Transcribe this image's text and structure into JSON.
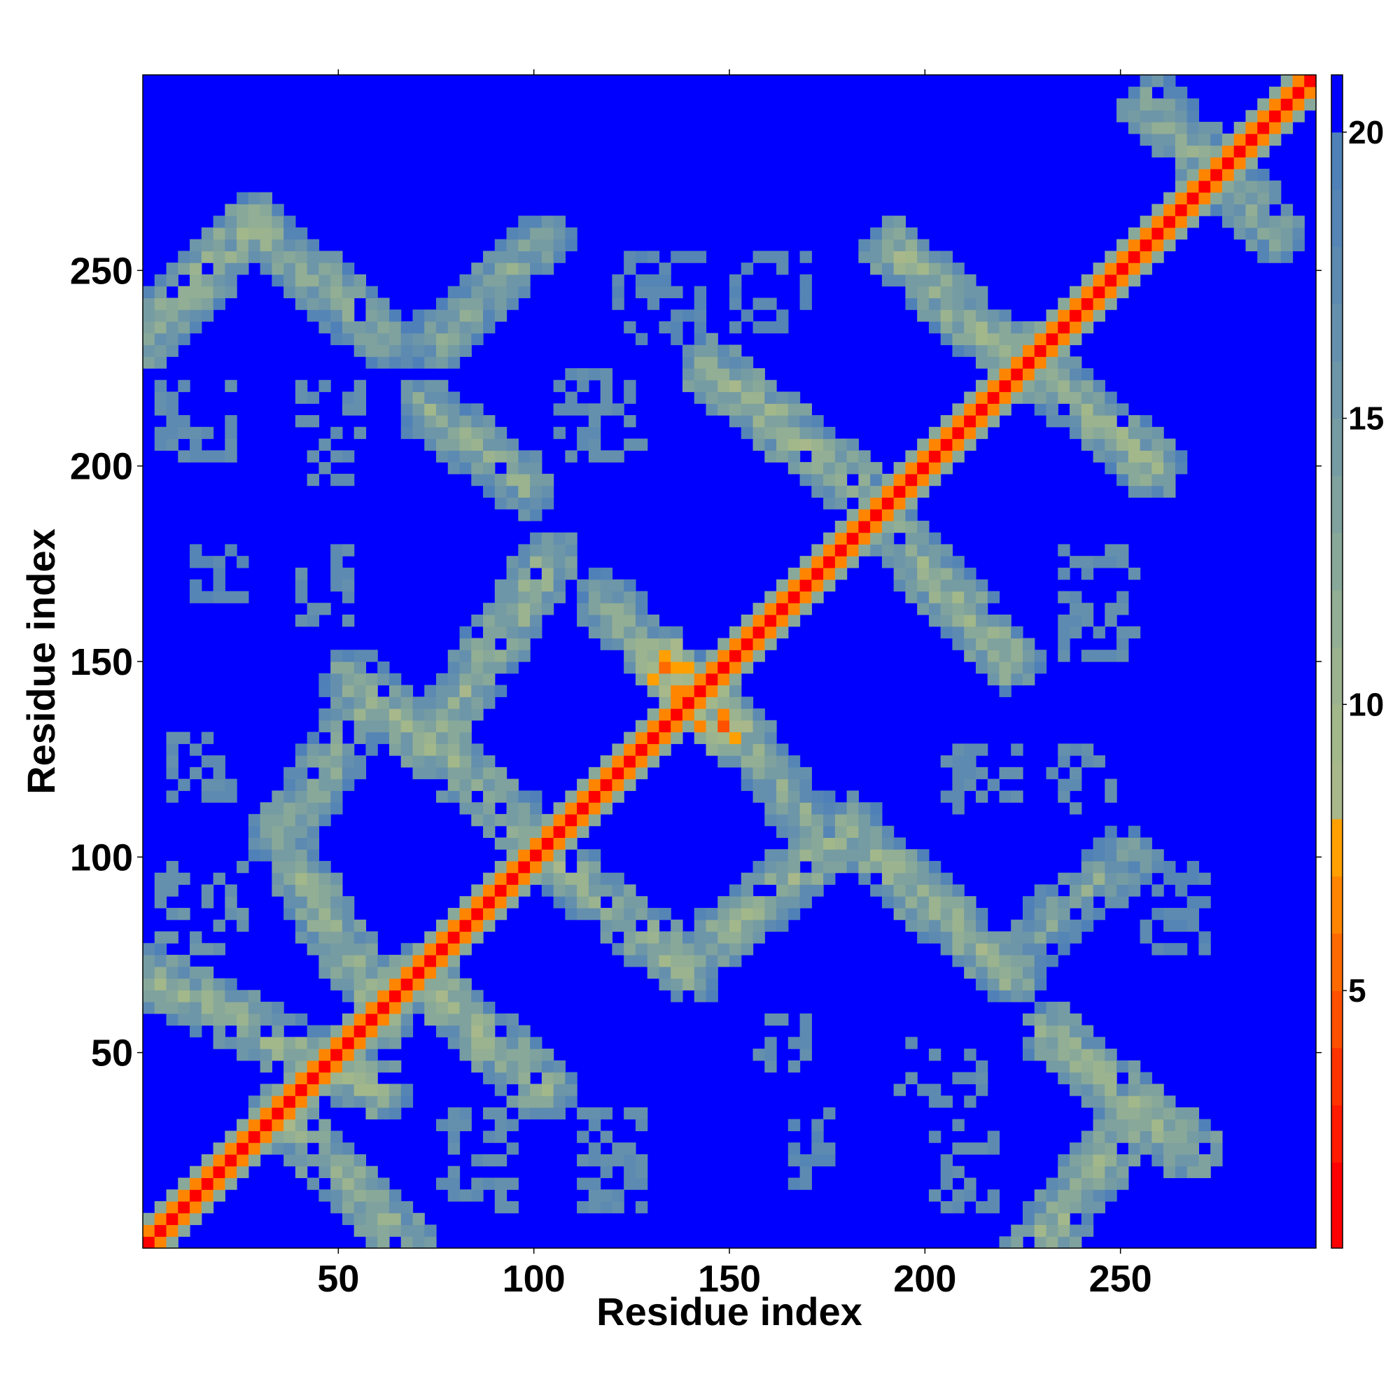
{
  "chart_data": {
    "type": "heatmap",
    "title": "",
    "xlabel": "Residue index",
    "ylabel": "Residue index",
    "n_residues": 300,
    "xlim": [
      0,
      300
    ],
    "ylim": [
      0,
      300
    ],
    "x_ticks": [
      50,
      100,
      150,
      200,
      250
    ],
    "y_ticks": [
      50,
      100,
      150,
      200,
      250
    ],
    "colorbar": {
      "ticks": [
        5,
        10,
        15,
        20
      ],
      "range": [
        0.5,
        21
      ],
      "levels": [
        {
          "from": 0.5,
          "to": 2,
          "color": "#ff0000"
        },
        {
          "from": 2,
          "to": 3,
          "color": "#ff1a00"
        },
        {
          "from": 3,
          "to": 4,
          "color": "#ff3300"
        },
        {
          "from": 4,
          "to": 5,
          "color": "#ff5000"
        },
        {
          "from": 5,
          "to": 6,
          "color": "#ff6a00"
        },
        {
          "from": 6,
          "to": 7,
          "color": "#ff8500"
        },
        {
          "from": 7,
          "to": 8,
          "color": "#ffa000"
        },
        {
          "from": 8,
          "to": 9,
          "color": "#a8b88a"
        },
        {
          "from": 9,
          "to": 10,
          "color": "#a3b88a"
        },
        {
          "from": 10,
          "to": 11,
          "color": "#9bb38f"
        },
        {
          "from": 11,
          "to": 12,
          "color": "#92ae94"
        },
        {
          "from": 12,
          "to": 13,
          "color": "#88a999"
        },
        {
          "from": 13,
          "to": 14,
          "color": "#7fa29e"
        },
        {
          "from": 14,
          "to": 15,
          "color": "#769ca3"
        },
        {
          "from": 15,
          "to": 16,
          "color": "#6d96a8"
        },
        {
          "from": 16,
          "to": 17,
          "color": "#6590ad"
        },
        {
          "from": 17,
          "to": 18,
          "color": "#5d8ab1"
        },
        {
          "from": 18,
          "to": 19,
          "color": "#5585b5"
        },
        {
          "from": 19,
          "to": 20,
          "color": "#4f81b8"
        },
        {
          "from": 20,
          "to": 21,
          "color": "#0000ff"
        }
      ]
    },
    "background_value": 21,
    "diagonal": {
      "core_value": 1,
      "band_width": 9
    },
    "contact_bands": [
      {
        "x": [
          0,
          60
        ],
        "y": [
          70,
          40
        ],
        "orientation": "anti",
        "mean_value": 11
      },
      {
        "x": [
          35,
          68
        ],
        "y": [
          35,
          0
        ],
        "orientation": "anti",
        "mean_value": 11
      },
      {
        "x": [
          0,
          28
        ],
        "y": [
          232,
          262
        ],
        "orientation": "para",
        "mean_value": 11
      },
      {
        "x": [
          28,
          62
        ],
        "y": [
          262,
          232
        ],
        "orientation": "anti",
        "mean_value": 12
      },
      {
        "x": [
          72,
          98
        ],
        "y": [
          215,
          195
        ],
        "orientation": "anti",
        "mean_value": 12
      },
      {
        "x": [
          75,
          102
        ],
        "y": [
          232,
          258
        ],
        "orientation": "para",
        "mean_value": 13
      },
      {
        "x": [
          74,
          104
        ],
        "y": [
          130,
          176
        ],
        "orientation": "para",
        "mean_value": 11
      },
      {
        "x": [
          40,
          62
        ],
        "y": [
          95,
          60
        ],
        "orientation": "anti",
        "mean_value": 11
      },
      {
        "x": [
          54,
          95
        ],
        "y": [
          145,
          110
        ],
        "orientation": "anti",
        "mean_value": 11
      },
      {
        "x": [
          35,
          55
        ],
        "y": [
          105,
          135
        ],
        "orientation": "para",
        "mean_value": 12
      },
      {
        "x": [
          70,
          103
        ],
        "y": [
          70,
          40
        ],
        "orientation": "anti",
        "mean_value": 11
      },
      {
        "x": [
          104,
          140
        ],
        "y": [
          100,
          70
        ],
        "orientation": "anti",
        "mean_value": 11
      },
      {
        "x": [
          148,
          182
        ],
        "y": [
          80,
          108
        ],
        "orientation": "para",
        "mean_value": 11
      },
      {
        "x": [
          118,
          138
        ],
        "y": [
          165,
          145
        ],
        "orientation": "anti",
        "mean_value": 12
      },
      {
        "x": [
          145,
          170
        ],
        "y": [
          140,
          110
        ],
        "orientation": "anti",
        "mean_value": 12
      },
      {
        "x": [
          145,
          182
        ],
        "y": [
          225,
          195
        ],
        "orientation": "anti",
        "mean_value": 11
      },
      {
        "x": [
          190,
          222
        ],
        "y": [
          185,
          150
        ],
        "orientation": "anti",
        "mean_value": 11
      },
      {
        "x": [
          192,
          222
        ],
        "y": [
          255,
          228
        ],
        "orientation": "anti",
        "mean_value": 11
      },
      {
        "x": [
          225,
          258
        ],
        "y": [
          228,
          200
        ],
        "orientation": "anti",
        "mean_value": 11
      },
      {
        "x": [
          188,
          222
        ],
        "y": [
          100,
          70
        ],
        "orientation": "anti",
        "mean_value": 11
      },
      {
        "x": [
          228,
          252
        ],
        "y": [
          80,
          100
        ],
        "orientation": "para",
        "mean_value": 13
      },
      {
        "x": [
          232,
          268
        ],
        "y": [
          55,
          25
        ],
        "orientation": "anti",
        "mean_value": 11
      },
      {
        "x": [
          228,
          255
        ],
        "y": [
          0,
          35
        ],
        "orientation": "para",
        "mean_value": 11
      },
      {
        "x": [
          258,
          290
        ],
        "y": [
          292,
          260
        ],
        "orientation": "anti",
        "mean_value": 12
      },
      {
        "x": [
          134,
          148
        ],
        "y": [
          148,
          134
        ],
        "orientation": "anti",
        "mean_value": 6
      }
    ],
    "scattered_patches": [
      {
        "x": [
          2,
          28
        ],
        "y": [
          200,
          222
        ],
        "mean_value": 17
      },
      {
        "x": [
          38,
          58
        ],
        "y": [
          195,
          222
        ],
        "mean_value": 17
      },
      {
        "x": [
          10,
          28
        ],
        "y": [
          165,
          180
        ],
        "mean_value": 18
      },
      {
        "x": [
          38,
          55
        ],
        "y": [
          160,
          180
        ],
        "mean_value": 17
      },
      {
        "x": [
          5,
          25
        ],
        "y": [
          115,
          132
        ],
        "mean_value": 17
      },
      {
        "x": [
          2,
          28
        ],
        "y": [
          75,
          100
        ],
        "mean_value": 16
      },
      {
        "x": [
          75,
          95
        ],
        "y": [
          10,
          35
        ],
        "mean_value": 17
      },
      {
        "x": [
          110,
          130
        ],
        "y": [
          10,
          35
        ],
        "mean_value": 17
      },
      {
        "x": [
          105,
          130
        ],
        "y": [
          200,
          225
        ],
        "mean_value": 17
      },
      {
        "x": [
          120,
          145
        ],
        "y": [
          230,
          255
        ],
        "mean_value": 18
      },
      {
        "x": [
          150,
          170
        ],
        "y": [
          235,
          255
        ],
        "mean_value": 18
      },
      {
        "x": [
          155,
          172
        ],
        "y": [
          45,
          60
        ],
        "mean_value": 17
      },
      {
        "x": [
          165,
          178
        ],
        "y": [
          15,
          35
        ],
        "mean_value": 18
      },
      {
        "x": [
          192,
          215
        ],
        "y": [
          35,
          55
        ],
        "mean_value": 17
      },
      {
        "x": [
          200,
          218
        ],
        "y": [
          10,
          32
        ],
        "mean_value": 17
      },
      {
        "x": [
          205,
          225
        ],
        "y": [
          110,
          130
        ],
        "mean_value": 17
      },
      {
        "x": [
          232,
          250
        ],
        "y": [
          110,
          130
        ],
        "mean_value": 17
      },
      {
        "x": [
          235,
          255
        ],
        "y": [
          150,
          180
        ],
        "mean_value": 17
      },
      {
        "x": [
          255,
          275
        ],
        "y": [
          75,
          100
        ],
        "mean_value": 18
      }
    ]
  }
}
